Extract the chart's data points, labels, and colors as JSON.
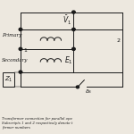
{
  "bg_color": "#ede8df",
  "line_color": "#1a1a1a",
  "text_color": "#1a1a1a",
  "label_primary": "Primary",
  "label_secondary": "Secondary",
  "label_V1": "$\\bar{V}_1$",
  "label_E1": "$E_1$",
  "label_Z1": "$Z_1$",
  "label_1": "1",
  "label_2": "2",
  "label_S": "$\\delta_S$",
  "caption_line1": "Transformer connection for parallel ope",
  "caption_line2": "Subscripts 1 and 2 respectively denote t",
  "caption_line3": "former numbers"
}
